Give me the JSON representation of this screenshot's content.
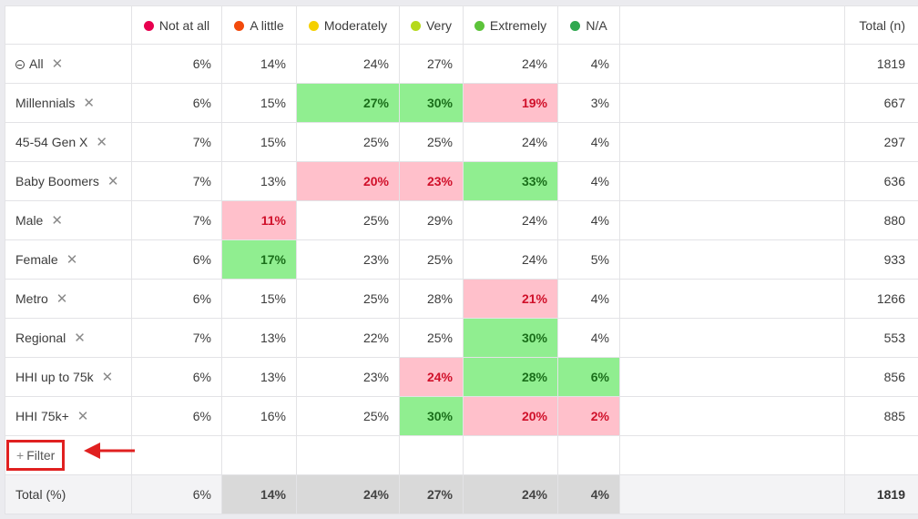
{
  "header": {
    "columns": [
      {
        "label": "Not at all",
        "color": "#e8004f"
      },
      {
        "label": "A little",
        "color": "#f24a0c"
      },
      {
        "label": "Moderately",
        "color": "#f5d000"
      },
      {
        "label": "Very",
        "color": "#b5d91c"
      },
      {
        "label": "Extremely",
        "color": "#5cc33a"
      },
      {
        "label": "N/A",
        "color": "#2fa84f"
      }
    ],
    "total_label": "Total (n)"
  },
  "rows": [
    {
      "label": "All",
      "cells": [
        [
          "6%",
          ""
        ],
        [
          "14%",
          ""
        ],
        [
          "24%",
          ""
        ],
        [
          "27%",
          ""
        ],
        [
          "24%",
          ""
        ],
        [
          "4%",
          ""
        ]
      ],
      "total": "1819"
    },
    {
      "label": "Millennials",
      "cells": [
        [
          "6%",
          ""
        ],
        [
          "15%",
          ""
        ],
        [
          "27%",
          "hi"
        ],
        [
          "30%",
          "hi"
        ],
        [
          "19%",
          "lo"
        ],
        [
          "3%",
          ""
        ]
      ],
      "total": "667"
    },
    {
      "label": "45-54 Gen X",
      "cells": [
        [
          "7%",
          ""
        ],
        [
          "15%",
          ""
        ],
        [
          "25%",
          ""
        ],
        [
          "25%",
          ""
        ],
        [
          "24%",
          ""
        ],
        [
          "4%",
          ""
        ]
      ],
      "total": "297"
    },
    {
      "label": "Baby Boomers",
      "cells": [
        [
          "7%",
          ""
        ],
        [
          "13%",
          ""
        ],
        [
          "20%",
          "lo"
        ],
        [
          "23%",
          "lo"
        ],
        [
          "33%",
          "hi"
        ],
        [
          "4%",
          ""
        ]
      ],
      "total": "636"
    },
    {
      "label": "Male",
      "cells": [
        [
          "7%",
          ""
        ],
        [
          "11%",
          "lo"
        ],
        [
          "25%",
          ""
        ],
        [
          "29%",
          ""
        ],
        [
          "24%",
          ""
        ],
        [
          "4%",
          ""
        ]
      ],
      "total": "880"
    },
    {
      "label": "Female",
      "cells": [
        [
          "6%",
          ""
        ],
        [
          "17%",
          "hi"
        ],
        [
          "23%",
          ""
        ],
        [
          "25%",
          ""
        ],
        [
          "24%",
          ""
        ],
        [
          "5%",
          ""
        ]
      ],
      "total": "933"
    },
    {
      "label": "Metro",
      "cells": [
        [
          "6%",
          ""
        ],
        [
          "15%",
          ""
        ],
        [
          "25%",
          ""
        ],
        [
          "28%",
          ""
        ],
        [
          "21%",
          "lo"
        ],
        [
          "4%",
          ""
        ]
      ],
      "total": "1266"
    },
    {
      "label": "Regional",
      "cells": [
        [
          "7%",
          ""
        ],
        [
          "13%",
          ""
        ],
        [
          "22%",
          ""
        ],
        [
          "25%",
          ""
        ],
        [
          "30%",
          "hi"
        ],
        [
          "4%",
          ""
        ]
      ],
      "total": "553"
    },
    {
      "label": "HHI up to 75k",
      "cells": [
        [
          "6%",
          ""
        ],
        [
          "13%",
          ""
        ],
        [
          "23%",
          ""
        ],
        [
          "24%",
          "lo"
        ],
        [
          "28%",
          "hi"
        ],
        [
          "6%",
          "hi"
        ]
      ],
      "total": "856"
    },
    {
      "label": "HHI 75k+",
      "cells": [
        [
          "6%",
          ""
        ],
        [
          "16%",
          ""
        ],
        [
          "25%",
          ""
        ],
        [
          "30%",
          "hi"
        ],
        [
          "20%",
          "lo"
        ],
        [
          "2%",
          "lo"
        ]
      ],
      "total": "885"
    }
  ],
  "filter_label": "Filter",
  "remove_glyph": "✕",
  "footer": {
    "label": "Total (%)",
    "cells": [
      "6%",
      "14%",
      "24%",
      "27%",
      "24%",
      "4%"
    ],
    "total": "1819"
  }
}
